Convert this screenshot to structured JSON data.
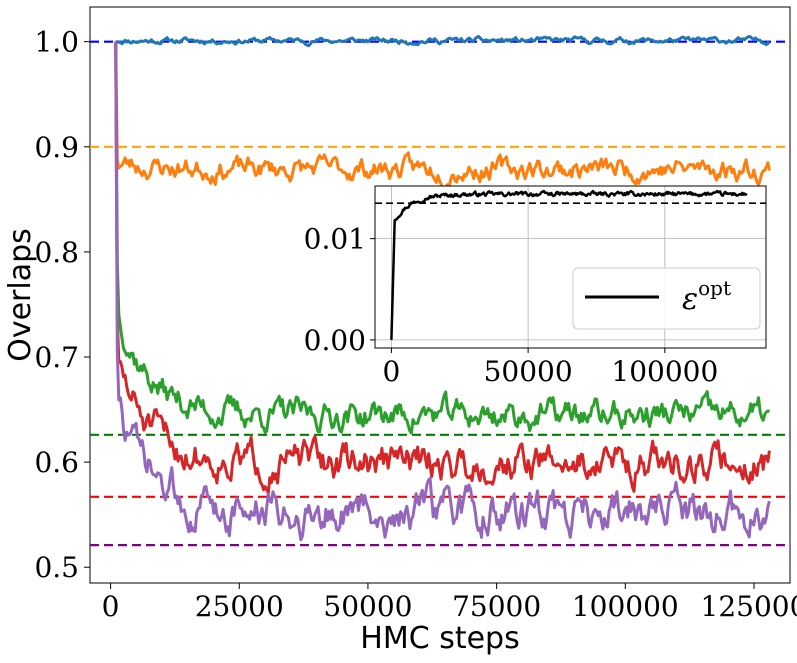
{
  "chart_data": [
    {
      "type": "line",
      "xlabel": "HMC steps",
      "ylabel": "Overlaps",
      "xlim": [
        -4000,
        132000
      ],
      "ylim": [
        0.485,
        1.033
      ],
      "x_ticks": [
        0,
        25000,
        50000,
        75000,
        100000,
        125000
      ],
      "x_tick_labels": [
        "0",
        "25000",
        "50000",
        "75000",
        "100000",
        "125000"
      ],
      "y_ticks": [
        0.5,
        0.6,
        0.7,
        0.8,
        0.9,
        1.0
      ],
      "y_tick_labels": [
        "0.5",
        "0.6",
        "0.7",
        "0.8",
        "0.9",
        "1.0"
      ],
      "grid": false,
      "x_range": [
        1000,
        128000
      ],
      "reference_lines": [
        {
          "name": "blue-dashed",
          "y": 1.0,
          "color": "#0000ff"
        },
        {
          "name": "orange-dashed",
          "y": 0.9,
          "color": "#ffa500"
        },
        {
          "name": "green-dashed",
          "y": 0.626,
          "color": "#008000"
        },
        {
          "name": "red-dashed",
          "y": 0.567,
          "color": "#ff0000"
        },
        {
          "name": "purple-dashed",
          "y": 0.521,
          "color": "#800080"
        }
      ],
      "series": [
        {
          "name": "blue",
          "color": "#1f77b4",
          "start": 1.0,
          "plateau": 1.001,
          "noise": 0.003,
          "decay": 1,
          "seed": 11
        },
        {
          "name": "orange",
          "color": "#ff7f0e",
          "start": 1.0,
          "plateau": 0.879,
          "noise": 0.009,
          "decay": 0.05,
          "seed": 23
        },
        {
          "name": "green",
          "color": "#2ca02c",
          "start": 1.0,
          "plateau": 0.645,
          "noise": 0.012,
          "decay": 0.3,
          "seed": 37
        },
        {
          "name": "red",
          "color": "#d62728",
          "start": 1.0,
          "plateau": 0.6,
          "noise": 0.015,
          "decay": 0.25,
          "seed": 51
        },
        {
          "name": "purple",
          "color": "#9467bd",
          "start": 1.0,
          "plateau": 0.552,
          "noise": 0.017,
          "decay": 0.25,
          "seed": 73
        }
      ]
    },
    {
      "type": "line",
      "title": "inset",
      "xlim": [
        -6000,
        137000
      ],
      "ylim": [
        -0.0008,
        0.0152
      ],
      "x_ticks": [
        0,
        50000,
        100000
      ],
      "x_tick_labels": [
        "0",
        "50000",
        "100000"
      ],
      "y_ticks": [
        0.0,
        0.01
      ],
      "y_tick_labels": [
        "0.00",
        "0.01"
      ],
      "grid": true,
      "legend_placement": "lower-right",
      "reference_lines": [
        {
          "name": "black-dashed",
          "y": 0.0135,
          "color": "#000000"
        }
      ],
      "series": [
        {
          "name": "epsilon-opt",
          "label": "ε",
          "label_superscript": "opt",
          "color": "#000000",
          "start": 0.0,
          "rise_end": 1200,
          "jump": 0.0118,
          "plateau": 0.0144,
          "noise": 0.00018,
          "seed": 97
        }
      ]
    }
  ]
}
